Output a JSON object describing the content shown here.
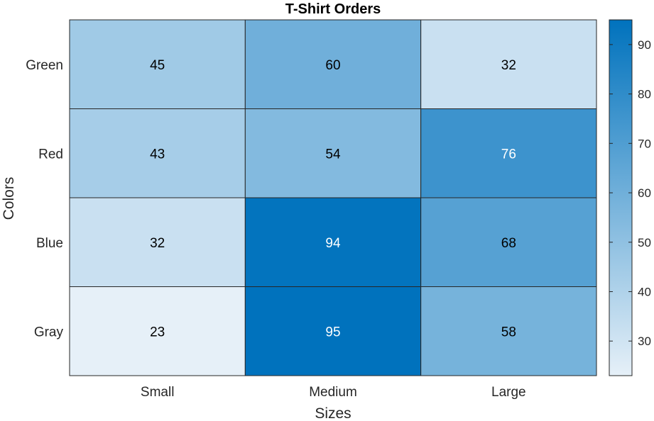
{
  "chart_data": {
    "type": "heatmap",
    "title": "T-Shirt Orders",
    "xlabel": "Sizes",
    "ylabel": "Colors",
    "x_categories": [
      "Small",
      "Medium",
      "Large"
    ],
    "y_categories": [
      "Green",
      "Red",
      "Blue",
      "Gray"
    ],
    "values": [
      [
        45,
        60,
        32
      ],
      [
        43,
        54,
        76
      ],
      [
        32,
        94,
        68
      ],
      [
        23,
        95,
        58
      ]
    ],
    "colorbar": {
      "min": 23,
      "max": 95,
      "ticks": [
        30,
        40,
        50,
        60,
        70,
        80,
        90
      ],
      "color_low": "#e6f0f8",
      "color_high": "#0072bd"
    }
  }
}
